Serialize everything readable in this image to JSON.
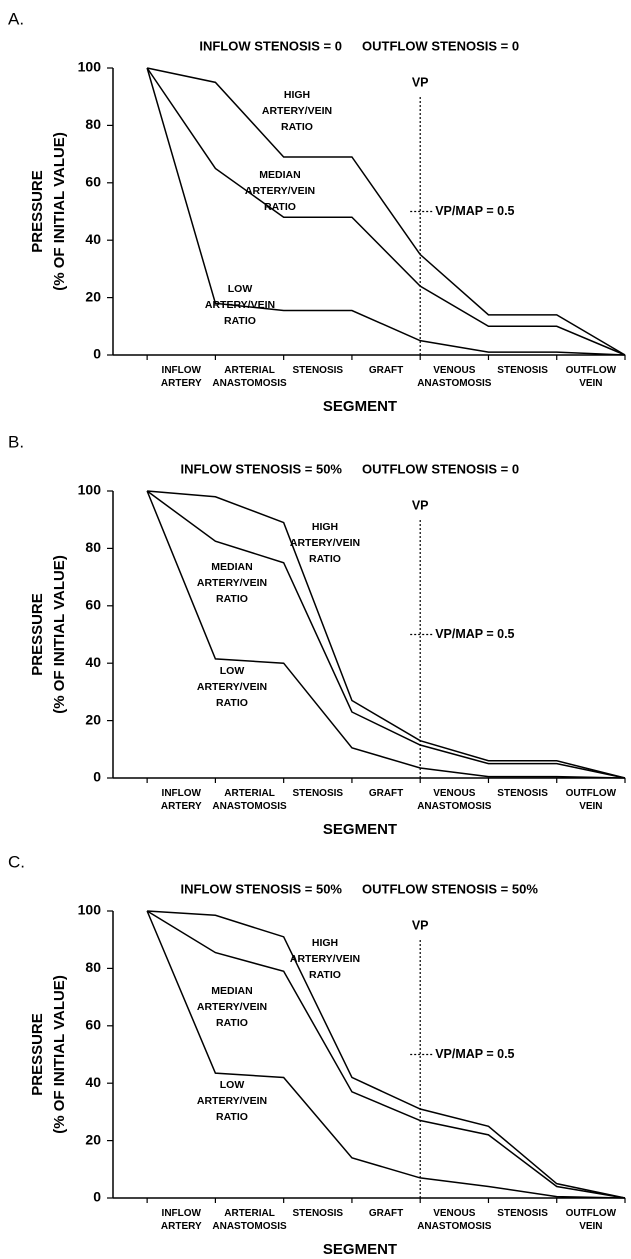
{
  "chart_data": [
    {
      "type": "line",
      "panel": "A.",
      "title": [
        "INFLOW STENOSIS = 0",
        "OUTFLOW STENOSIS = 0"
      ],
      "xlabel": "SEGMENT",
      "ylabel": [
        "PRESSURE",
        "(% OF INITIAL VALUE)"
      ],
      "categories": [
        [
          "INFLOW",
          "ARTERY"
        ],
        [
          "ARTERIAL",
          "ANASTOMOSIS"
        ],
        [
          "STENOSIS"
        ],
        [
          "GRAFT"
        ],
        [
          "VENOUS",
          "ANASTOMOSIS"
        ],
        [
          "STENOSIS"
        ],
        [
          "OUTFLOW",
          "VEIN"
        ]
      ],
      "x": [
        0,
        1,
        2,
        3,
        4,
        5,
        6,
        7
      ],
      "xlim": [
        -0.5,
        7
      ],
      "ylim": [
        0,
        100
      ],
      "yticks": [
        0,
        20,
        40,
        60,
        80,
        100
      ],
      "series": [
        {
          "name": [
            "HIGH",
            "ARTERY/VEIN",
            "RATIO"
          ],
          "color": "#000000",
          "values": [
            100,
            95,
            69,
            69,
            35,
            14,
            14,
            0
          ]
        },
        {
          "name": [
            "MEDIAN",
            "ARTERY/VEIN",
            "RATIO"
          ],
          "color": "#000000",
          "values": [
            100,
            65,
            48,
            48,
            24,
            10,
            10,
            0
          ]
        },
        {
          "name": [
            "LOW",
            "ARTERY/VEIN",
            "RATIO"
          ],
          "color": "#000000",
          "values": [
            100,
            18,
            15.5,
            15.5,
            5,
            1,
            1,
            0
          ]
        }
      ],
      "vp": {
        "label": "VP",
        "x": 4
      },
      "vp_map": {
        "label": "VP/MAP = 0.5",
        "y": 50
      }
    },
    {
      "type": "line",
      "panel": "B.",
      "title": [
        "INFLOW STENOSIS = 50%",
        "OUTFLOW STENOSIS = 0"
      ],
      "xlabel": "SEGMENT",
      "ylabel": [
        "PRESSURE",
        "(% OF INITIAL VALUE)"
      ],
      "categories": [
        [
          "INFLOW",
          "ARTERY"
        ],
        [
          "ARTERIAL",
          "ANASTOMOSIS"
        ],
        [
          "STENOSIS"
        ],
        [
          "GRAFT"
        ],
        [
          "VENOUS",
          "ANASTOMOSIS"
        ],
        [
          "STENOSIS"
        ],
        [
          "OUTFLOW",
          "VEIN"
        ]
      ],
      "x": [
        0,
        1,
        2,
        3,
        4,
        5,
        6,
        7
      ],
      "xlim": [
        -0.5,
        7
      ],
      "ylim": [
        0,
        100
      ],
      "yticks": [
        0,
        20,
        40,
        60,
        80,
        100
      ],
      "series": [
        {
          "name": [
            "HIGH",
            "ARTERY/VEIN",
            "RATIO"
          ],
          "color": "#000000",
          "values": [
            100,
            98,
            89,
            27,
            13,
            6,
            6,
            0
          ]
        },
        {
          "name": [
            "MEDIAN",
            "ARTERY/VEIN",
            "RATIO"
          ],
          "color": "#000000",
          "values": [
            100,
            82.5,
            75,
            23,
            11.5,
            5,
            5,
            0
          ]
        },
        {
          "name": [
            "LOW",
            "ARTERY/VEIN",
            "RATIO"
          ],
          "color": "#000000",
          "values": [
            100,
            41.5,
            40,
            10.5,
            3.5,
            0.5,
            0.5,
            0
          ]
        }
      ],
      "vp": {
        "label": "VP",
        "x": 4
      },
      "vp_map": {
        "label": "VP/MAP = 0.5",
        "y": 50
      }
    },
    {
      "type": "line",
      "panel": "C.",
      "title": [
        "INFLOW STENOSIS = 50%",
        "OUTFLOW STENOSIS = 50%"
      ],
      "xlabel": "SEGMENT",
      "ylabel": [
        "PRESSURE",
        "(% OF INITIAL VALUE)"
      ],
      "categories": [
        [
          "INFLOW",
          "ARTERY"
        ],
        [
          "ARTERIAL",
          "ANASTOMOSIS"
        ],
        [
          "STENOSIS"
        ],
        [
          "GRAFT"
        ],
        [
          "VENOUS",
          "ANASTOMOSIS"
        ],
        [
          "STENOSIS"
        ],
        [
          "OUTFLOW",
          "VEIN"
        ]
      ],
      "x": [
        0,
        1,
        2,
        3,
        4,
        5,
        6,
        7
      ],
      "xlim": [
        -0.5,
        7
      ],
      "ylim": [
        0,
        100
      ],
      "yticks": [
        0,
        20,
        40,
        60,
        80,
        100
      ],
      "series": [
        {
          "name": [
            "HIGH",
            "ARTERY/VEIN",
            "RATIO"
          ],
          "color": "#000000",
          "values": [
            100,
            98.5,
            91,
            42,
            31,
            25,
            5,
            0
          ]
        },
        {
          "name": [
            "MEDIAN",
            "ARTERY/VEIN",
            "RATIO"
          ],
          "color": "#000000",
          "values": [
            100,
            85.5,
            79,
            37,
            27,
            22,
            4,
            0
          ]
        },
        {
          "name": [
            "LOW",
            "ARTERY/VEIN",
            "RATIO"
          ],
          "color": "#000000",
          "values": [
            100,
            43.5,
            42,
            14,
            7,
            4,
            0.5,
            0
          ]
        }
      ],
      "vp": {
        "label": "VP",
        "x": 4
      },
      "vp_map": {
        "label": "VP/MAP = 0.5",
        "y": 50
      }
    }
  ]
}
